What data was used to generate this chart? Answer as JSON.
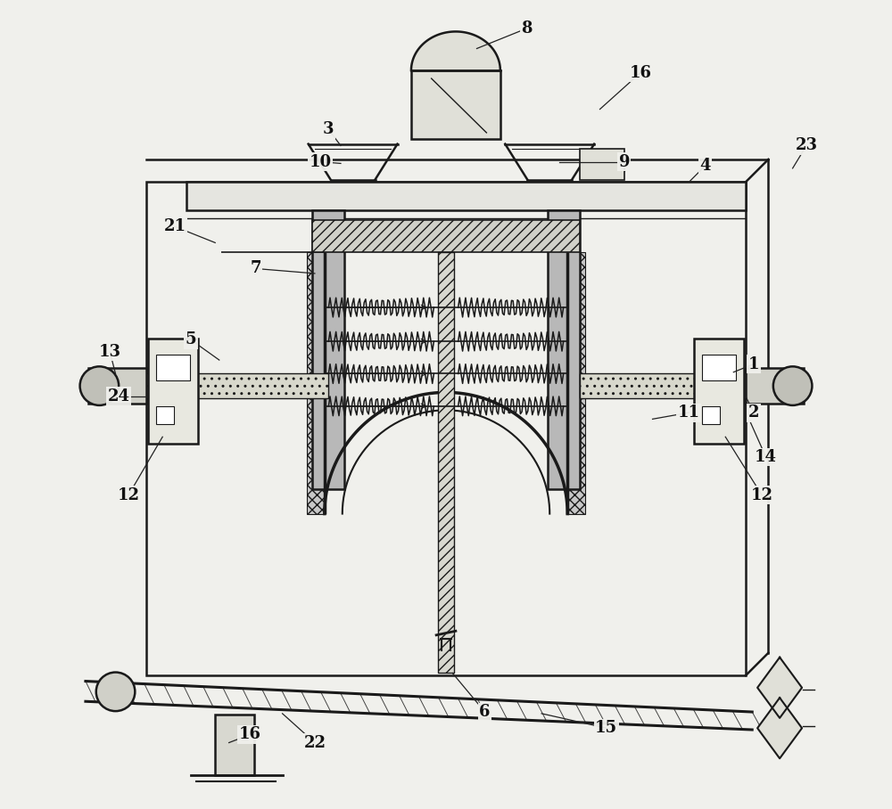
{
  "bg_color": "#f0f0ec",
  "line_color": "#1a1a1a",
  "label_color": "#000000",
  "labels_pos": {
    "8": [
      0.6,
      0.965,
      0.538,
      0.94
    ],
    "16a": [
      0.74,
      0.91,
      0.69,
      0.865
    ],
    "3": [
      0.355,
      0.84,
      0.37,
      0.82
    ],
    "10": [
      0.345,
      0.8,
      0.37,
      0.798
    ],
    "9": [
      0.72,
      0.8,
      0.64,
      0.8
    ],
    "4": [
      0.82,
      0.795,
      0.8,
      0.775
    ],
    "21": [
      0.165,
      0.72,
      0.215,
      0.7
    ],
    "7": [
      0.265,
      0.668,
      0.338,
      0.662
    ],
    "5": [
      0.185,
      0.58,
      0.22,
      0.555
    ],
    "13": [
      0.085,
      0.565,
      0.092,
      0.538
    ],
    "24": [
      0.096,
      0.51,
      0.13,
      0.51
    ],
    "1": [
      0.88,
      0.55,
      0.855,
      0.54
    ],
    "11": [
      0.8,
      0.49,
      0.755,
      0.482
    ],
    "2": [
      0.88,
      0.49,
      0.87,
      0.51
    ],
    "14": [
      0.895,
      0.435,
      0.875,
      0.48
    ],
    "12a": [
      0.108,
      0.388,
      0.15,
      0.46
    ],
    "12b": [
      0.89,
      0.388,
      0.845,
      0.46
    ],
    "6": [
      0.548,
      0.12,
      0.508,
      0.168
    ],
    "15": [
      0.698,
      0.1,
      0.618,
      0.118
    ],
    "16b": [
      0.258,
      0.092,
      0.232,
      0.082
    ],
    "22": [
      0.338,
      0.082,
      0.298,
      0.118
    ],
    "23": [
      0.945,
      0.82,
      0.928,
      0.792
    ]
  }
}
